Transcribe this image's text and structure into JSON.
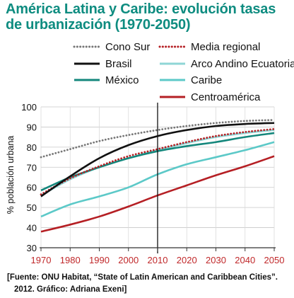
{
  "title": {
    "line1": "América Latina y Caribe: evolución tasas",
    "line2": "de urbanización (1970-2050)",
    "color": "#0e8c80"
  },
  "source": {
    "line1": "[Fuente: ONU Habitat, “State of Latin American and Caribbean Cities”.",
    "line2": "2012. Gráfico: Adriana Exeni]"
  },
  "chart_data": {
    "type": "line",
    "ylabel": "% población urbana",
    "xlabel": "",
    "xlim": [
      1970,
      2050
    ],
    "ylim": [
      30,
      100
    ],
    "x_ticks": [
      1970,
      1980,
      1990,
      2000,
      2010,
      2020,
      2030,
      2040,
      2050
    ],
    "y_ticks": [
      30,
      40,
      50,
      60,
      70,
      80,
      90,
      100
    ],
    "x_tick_color": "#c0282a",
    "grid": true,
    "reference_line_x": 2010,
    "legend_position": "top",
    "series": [
      {
        "name": "Cono Sur",
        "color": "#777777",
        "dash": "dotted",
        "x": [
          1970,
          1980,
          1990,
          2000,
          2010,
          2020,
          2030,
          2040,
          2050
        ],
        "values": [
          75,
          79,
          83,
          86,
          88.5,
          90.5,
          92,
          93,
          93.5
        ]
      },
      {
        "name": "Brasil",
        "color": "#111111",
        "dash": "solid",
        "x": [
          1970,
          1980,
          1990,
          2000,
          2010,
          2020,
          2030,
          2040,
          2050
        ],
        "values": [
          55.5,
          65.5,
          74.5,
          81,
          85.5,
          88.5,
          90.5,
          91.5,
          92
        ]
      },
      {
        "name": "México",
        "color": "#14877c",
        "dash": "solid",
        "x": [
          1970,
          1980,
          1990,
          2000,
          2010,
          2020,
          2030,
          2040,
          2050
        ],
        "values": [
          58.5,
          65,
          70,
          74.5,
          78,
          80.5,
          82.5,
          85,
          87
        ]
      },
      {
        "name": "Media regional",
        "color": "#b51f24",
        "dash": "dotted",
        "x": [
          1970,
          1980,
          1990,
          2000,
          2010,
          2020,
          2030,
          2040,
          2050
        ],
        "values": [
          56.5,
          64.5,
          70.5,
          75.5,
          79,
          82.5,
          85.5,
          87.5,
          89
        ]
      },
      {
        "name": "Arco Andino Ecuatorial",
        "color": "#8fd6d6",
        "dash": "solid",
        "x": [
          1970,
          1980,
          1990,
          2000,
          2010,
          2020,
          2030,
          2040,
          2050
        ],
        "values": [
          56,
          64,
          70,
          74.5,
          78.5,
          82,
          85,
          87,
          88.5
        ]
      },
      {
        "name": "Caribe",
        "color": "#5cc9c8",
        "dash": "solid",
        "x": [
          1970,
          1980,
          1990,
          2000,
          2010,
          2020,
          2030,
          2040,
          2050
        ],
        "values": [
          45.5,
          51.5,
          55.5,
          60,
          66.5,
          71.5,
          75,
          78.5,
          82.5
        ]
      },
      {
        "name": "Centroamérica",
        "color": "#b51f24",
        "dash": "solid",
        "x": [
          1970,
          1980,
          1990,
          2000,
          2010,
          2020,
          2030,
          2040,
          2050
        ],
        "values": [
          38,
          41.5,
          45.5,
          50.5,
          56,
          61,
          66,
          70.5,
          75.5
        ]
      }
    ]
  }
}
